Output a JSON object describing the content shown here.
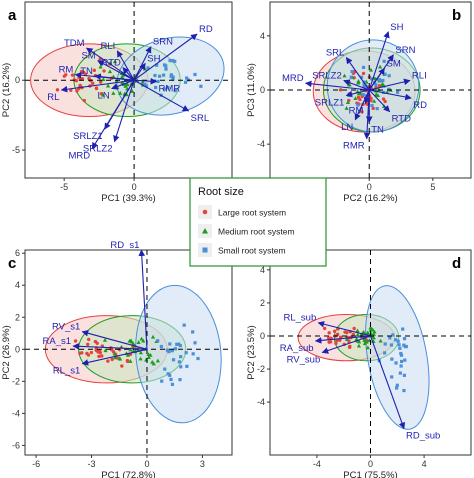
{
  "legend": {
    "title": "Root size",
    "items": [
      {
        "label": "Large root system",
        "color": "#e8413e",
        "marker": "circle"
      },
      {
        "label": "Medium root system",
        "color": "#1e9b1e",
        "marker": "triangle"
      },
      {
        "label": "Small root system",
        "color": "#4a90d9",
        "marker": "square"
      }
    ]
  },
  "colors": {
    "arrow": "#1f1fb0",
    "large": "#e8413e",
    "medium": "#1e9b1e",
    "small": "#4a90d9",
    "large_fill": "#f6c9c5",
    "medium_fill": "#c8e8c0",
    "small_fill": "#c9dcf3",
    "legend_border": "#2e9e3e"
  },
  "chart_data": [
    {
      "panel": "a",
      "type": "scatter",
      "xlabel": "PC1 (39.3%)",
      "ylabel": "PC2 (16.2%)",
      "xlim": [
        -7.8,
        7.0
      ],
      "ylim": [
        -7.0,
        5.6
      ],
      "xticks": [
        -5,
        0,
        5
      ],
      "yticks": [
        -5,
        0
      ],
      "loadings": [
        {
          "name": "RD",
          "x": 4.5,
          "y": 3.3
        },
        {
          "name": "SRN",
          "x": 1.2,
          "y": 2.4
        },
        {
          "name": "RLI",
          "x": -1.2,
          "y": 2.1
        },
        {
          "name": "SM",
          "x": -2.6,
          "y": 1.4
        },
        {
          "name": "TDM",
          "x": -3.4,
          "y": 2.3
        },
        {
          "name": "RM",
          "x": -4.2,
          "y": 0.4
        },
        {
          "name": "TN",
          "x": -2.8,
          "y": 0.3
        },
        {
          "name": "RTD",
          "x": -0.8,
          "y": 0.9
        },
        {
          "name": "SH",
          "x": 0.8,
          "y": 1.2
        },
        {
          "name": "RL",
          "x": -5.2,
          "y": -0.7
        },
        {
          "name": "LN",
          "x": -1.6,
          "y": -0.6
        },
        {
          "name": "RMR",
          "x": 1.6,
          "y": -0.1
        },
        {
          "name": "SRL",
          "x": 3.9,
          "y": -2.2
        },
        {
          "name": "SRLZ1",
          "x": -2.1,
          "y": -3.5
        },
        {
          "name": "SRLZ2",
          "x": -1.4,
          "y": -4.4
        },
        {
          "name": "MRD",
          "x": -3.0,
          "y": -4.9
        }
      ],
      "ellipses": [
        {
          "group": "large",
          "cx": -3.2,
          "cy": 0.0,
          "rx": 4.2,
          "ry": 2.6,
          "angle": 0
        },
        {
          "group": "medium",
          "cx": -0.5,
          "cy": 0.0,
          "rx": 3.8,
          "ry": 2.6,
          "angle": 0
        },
        {
          "group": "small",
          "cx": 2.6,
          "cy": 0.3,
          "rx": 3.9,
          "ry": 2.7,
          "angle": -15
        }
      ]
    },
    {
      "panel": "b",
      "type": "scatter",
      "xlabel": "PC2 (16.2%)",
      "ylabel": "PC3 (11.0%)",
      "xlim": [
        -7.8,
        8.0
      ],
      "ylim": [
        -6.5,
        6.5
      ],
      "xticks": [
        -5,
        0,
        5
      ],
      "yticks": [
        -4,
        0,
        4
      ],
      "loadings": [
        {
          "name": "SH",
          "x": 1.5,
          "y": 4.3
        },
        {
          "name": "SRN",
          "x": 1.9,
          "y": 2.6
        },
        {
          "name": "SRL",
          "x": -1.8,
          "y": 2.4
        },
        {
          "name": "SM",
          "x": 1.2,
          "y": 1.6
        },
        {
          "name": "RLI",
          "x": 3.2,
          "y": 0.7
        },
        {
          "name": "MRD",
          "x": -5.0,
          "y": 0.5
        },
        {
          "name": "SRLZ2",
          "x": -2.0,
          "y": 0.7
        },
        {
          "name": "SRLZ1",
          "x": -1.8,
          "y": -0.4
        },
        {
          "name": "RD",
          "x": 3.3,
          "y": -0.6
        },
        {
          "name": "RTD",
          "x": 1.6,
          "y": -1.6
        },
        {
          "name": "RM",
          "x": -0.3,
          "y": -1.0
        },
        {
          "name": "TN",
          "x": 0.0,
          "y": -2.4
        },
        {
          "name": "LN",
          "x": -1.1,
          "y": -2.2
        },
        {
          "name": "RMR",
          "x": -0.2,
          "y": -3.6
        }
      ],
      "ellipses": [
        {
          "group": "large",
          "cx": -0.4,
          "cy": -0.1,
          "rx": 4.0,
          "ry": 3.0,
          "angle": 0
        },
        {
          "group": "medium",
          "cx": 0.2,
          "cy": 0.0,
          "rx": 3.8,
          "ry": 3.1,
          "angle": 0
        },
        {
          "group": "small",
          "cx": 0.3,
          "cy": 0.3,
          "rx": 3.6,
          "ry": 3.4,
          "angle": 0
        }
      ]
    },
    {
      "panel": "c",
      "type": "scatter",
      "xlabel": "PC1 (72.8%)",
      "ylabel": "PC2 (26.9%)",
      "xlim": [
        -6.6,
        4.6
      ],
      "ylim": [
        -6.6,
        6.2
      ],
      "xticks": [
        -6,
        -3,
        0,
        3
      ],
      "yticks": [
        -6,
        -4,
        -2,
        0,
        2,
        4,
        6
      ],
      "loadings": [
        {
          "name": "RD_s1",
          "x": -0.3,
          "y": 6.2
        },
        {
          "name": "RV_s1",
          "x": -3.5,
          "y": 1.1
        },
        {
          "name": "RA_s1",
          "x": -4.0,
          "y": 0.2
        },
        {
          "name": "RL_s1",
          "x": -3.5,
          "y": -0.9
        }
      ],
      "ellipses": [
        {
          "group": "large",
          "cx": -2.2,
          "cy": 0.0,
          "rx": 3.3,
          "ry": 2.1,
          "angle": 0
        },
        {
          "group": "medium",
          "cx": -0.8,
          "cy": 0.0,
          "rx": 2.9,
          "ry": 2.1,
          "angle": 0
        },
        {
          "group": "small",
          "cx": 1.7,
          "cy": -0.3,
          "rx": 2.3,
          "ry": 4.3,
          "angle": -5
        }
      ]
    },
    {
      "panel": "d",
      "type": "scatter",
      "xlabel": "PC1 (75.5%)",
      "ylabel": "PC2 (23.5%)",
      "xlim": [
        -7.5,
        7.5
      ],
      "ylim": [
        -7.2,
        5.2
      ],
      "xticks": [
        -4,
        0,
        4
      ],
      "yticks": [
        -4,
        -2,
        0,
        2,
        4
      ],
      "loadings": [
        {
          "name": "RL_sub",
          "x": -3.9,
          "y": 0.8
        },
        {
          "name": "RA_sub",
          "x": -4.1,
          "y": -0.3
        },
        {
          "name": "RV_sub",
          "x": -3.6,
          "y": -1.0
        },
        {
          "name": "RD_sub",
          "x": 2.5,
          "y": -5.6
        }
      ],
      "ellipses": [
        {
          "group": "large",
          "cx": -1.8,
          "cy": -0.1,
          "rx": 3.6,
          "ry": 1.4,
          "angle": 0
        },
        {
          "group": "medium",
          "cx": -0.3,
          "cy": -0.1,
          "rx": 2.4,
          "ry": 1.4,
          "angle": 0
        },
        {
          "group": "small",
          "cx": 2.0,
          "cy": -1.3,
          "rx": 2.2,
          "ry": 4.4,
          "angle": -10
        }
      ]
    }
  ]
}
